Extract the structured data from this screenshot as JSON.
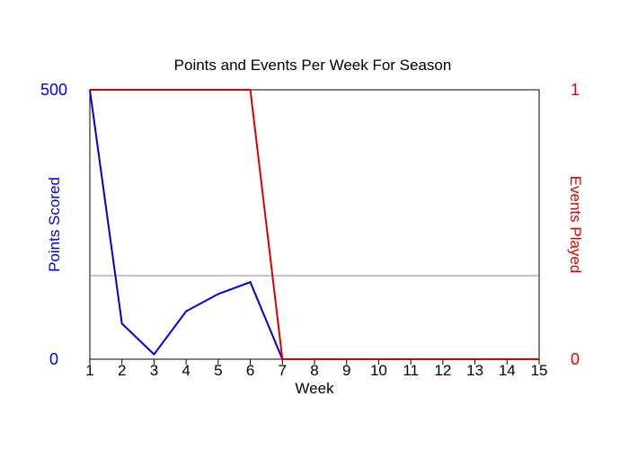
{
  "chart_data": {
    "type": "line",
    "title": "Points and Events Per Week For Season",
    "xlabel": "Week",
    "ylabel_left": "Points Scored",
    "ylabel_right": "Events Played",
    "x": [
      1,
      2,
      3,
      4,
      5,
      6,
      7,
      8,
      9,
      10,
      11,
      12,
      13,
      14,
      15
    ],
    "xlim": [
      1,
      15
    ],
    "ylim_left": [
      0,
      500
    ],
    "ylim_right": [
      0,
      1
    ],
    "left_tick_labels": [
      "0",
      "500"
    ],
    "right_tick_labels": [
      "0",
      "1"
    ],
    "reference_line_left": 155,
    "series": [
      {
        "axis": "left",
        "color": "#0000cc",
        "values": [
          500,
          66,
          9,
          89,
          121,
          143,
          0,
          0,
          0,
          0,
          0,
          0,
          0,
          0,
          0
        ]
      },
      {
        "axis": "right",
        "color": "#dd0000",
        "values": [
          1,
          1,
          1,
          1,
          1,
          1,
          0,
          0,
          0,
          0,
          0,
          0,
          0,
          0,
          0
        ]
      }
    ],
    "colors": {
      "left_axis": "#0000cc",
      "right_axis": "#dd0000",
      "reference_line": "#8080c0",
      "frame": "#000000"
    },
    "grid": false
  }
}
